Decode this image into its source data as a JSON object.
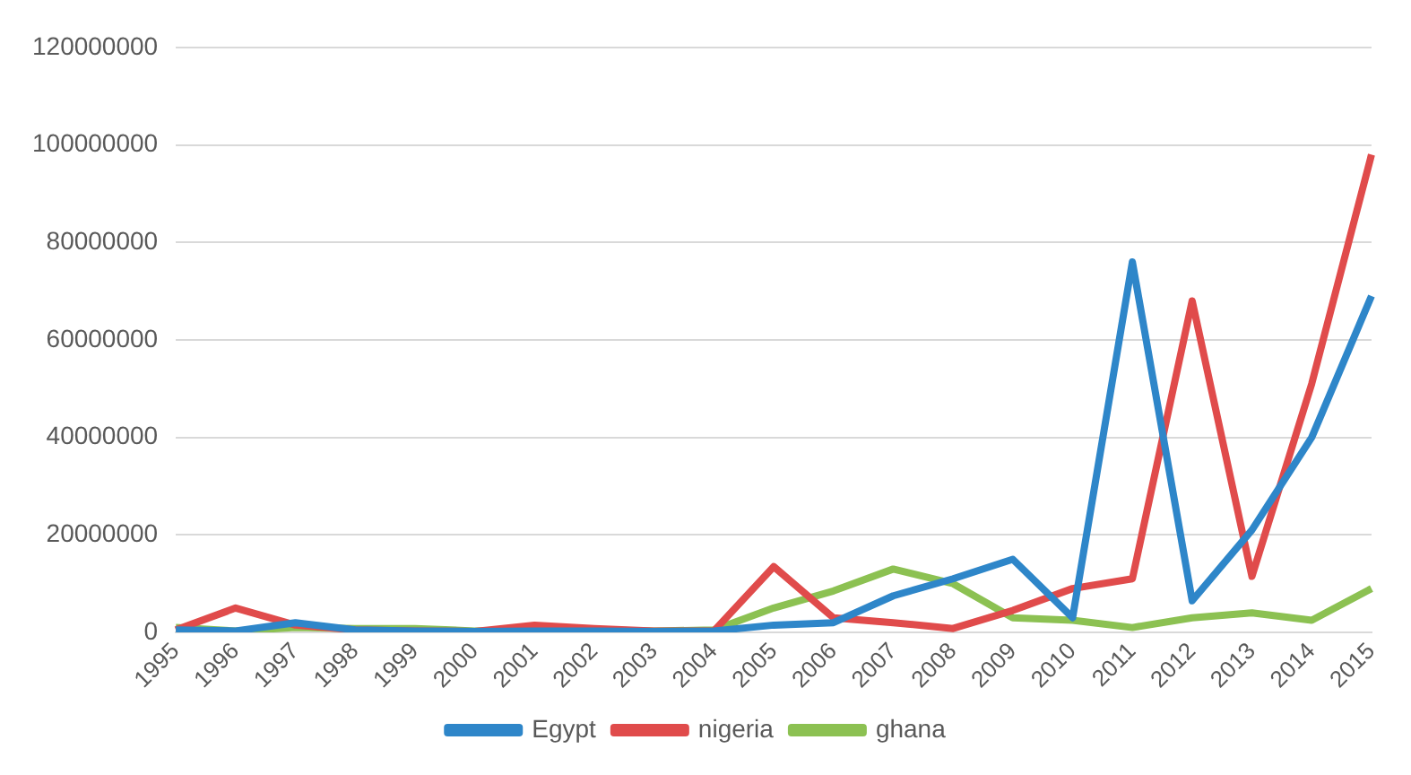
{
  "chart_data": {
    "type": "line",
    "categories": [
      "1995",
      "1996",
      "1997",
      "1998",
      "1999",
      "2000",
      "2001",
      "2002",
      "2003",
      "2004",
      "2005",
      "2006",
      "2007",
      "2008",
      "2009",
      "2010",
      "2011",
      "2012",
      "2013",
      "2014",
      "2015"
    ],
    "series": [
      {
        "name": "Egypt",
        "color": "#2e86c9",
        "values": [
          500000,
          300000,
          2000000,
          500000,
          300000,
          200000,
          300000,
          300000,
          200000,
          300000,
          1500000,
          2000000,
          7500000,
          11000000,
          15000000,
          3000000,
          76000000,
          6500000,
          21000000,
          40000000,
          69000000
        ]
      },
      {
        "name": "nigeria",
        "color": "#e04b4b",
        "values": [
          500000,
          5000000,
          1500000,
          500000,
          300000,
          200000,
          1500000,
          800000,
          300000,
          300000,
          13500000,
          3000000,
          2000000,
          800000,
          4500000,
          9000000,
          11000000,
          68000000,
          11500000,
          51000000,
          98000000
        ]
      },
      {
        "name": "ghana",
        "color": "#8cc152",
        "values": [
          1000000,
          300000,
          1000000,
          800000,
          800000,
          300000,
          500000,
          500000,
          300000,
          500000,
          5000000,
          8500000,
          13000000,
          10000000,
          3000000,
          2500000,
          1000000,
          3000000,
          4000000,
          2500000,
          9000000
        ]
      }
    ],
    "ylim": [
      0,
      120000000
    ],
    "yticks": [
      0,
      20000000,
      40000000,
      60000000,
      80000000,
      100000000,
      120000000
    ],
    "grid": "y",
    "legend": "bottom",
    "marker": "none",
    "line_style": "solid"
  }
}
